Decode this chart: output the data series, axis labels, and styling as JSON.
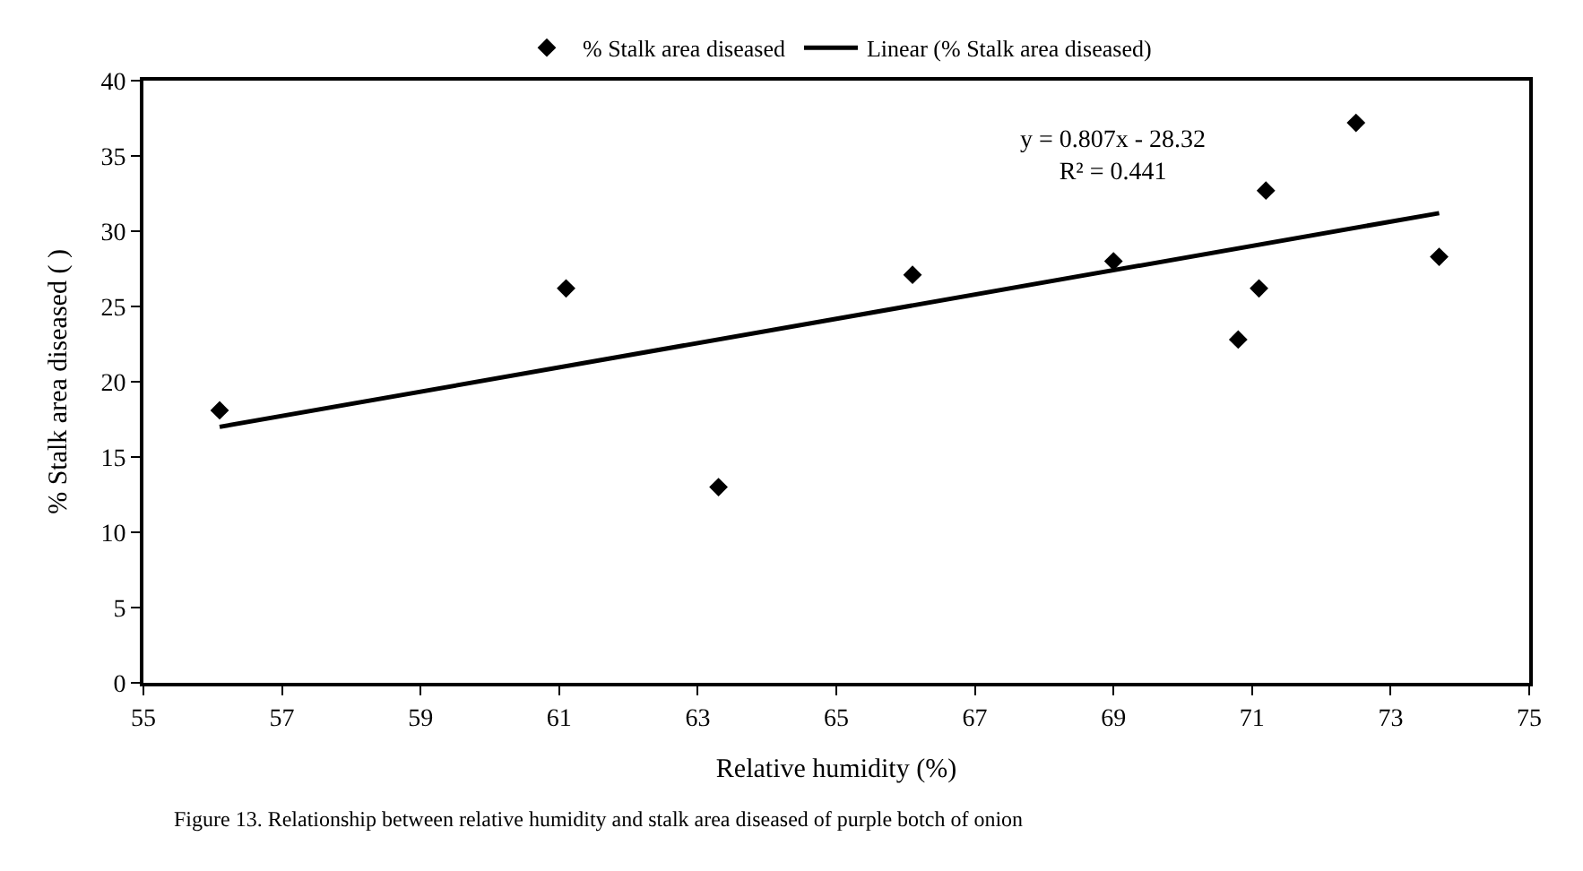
{
  "chart_data": {
    "type": "scatter",
    "xlabel": "Relative humidity (%)",
    "ylabel": "% Stalk area diseased ( )",
    "series": [
      {
        "name": "% Stalk area diseased",
        "marker": "diamond",
        "color": "#000000",
        "x": [
          56.1,
          61.1,
          63.3,
          66.1,
          69.0,
          70.8,
          71.1,
          71.2,
          72.5,
          73.7
        ],
        "values": [
          18.1,
          26.2,
          13.0,
          27.1,
          28.0,
          22.8,
          26.2,
          32.7,
          37.2,
          28.3
        ]
      },
      {
        "name": "Linear (% Stalk area diseased)",
        "type": "line",
        "marker": "none",
        "color": "#000000",
        "x": [
          56.1,
          73.7
        ],
        "values": [
          17.0,
          31.2
        ]
      }
    ],
    "annotations": [
      "y = 0.807x - 28.32\nR² = 0.441",
      "Figure 13. Relationship between relative humidity and stalk area diseased of purple botch of onion"
    ],
    "xlim": [
      55,
      75
    ],
    "xticks": [
      55,
      57,
      59,
      61,
      63,
      65,
      67,
      69,
      71,
      73,
      75
    ],
    "ylim": [
      0,
      40
    ],
    "yticks": [
      0,
      5,
      10,
      15,
      20,
      25,
      30,
      35,
      40
    ],
    "legend": "top"
  }
}
